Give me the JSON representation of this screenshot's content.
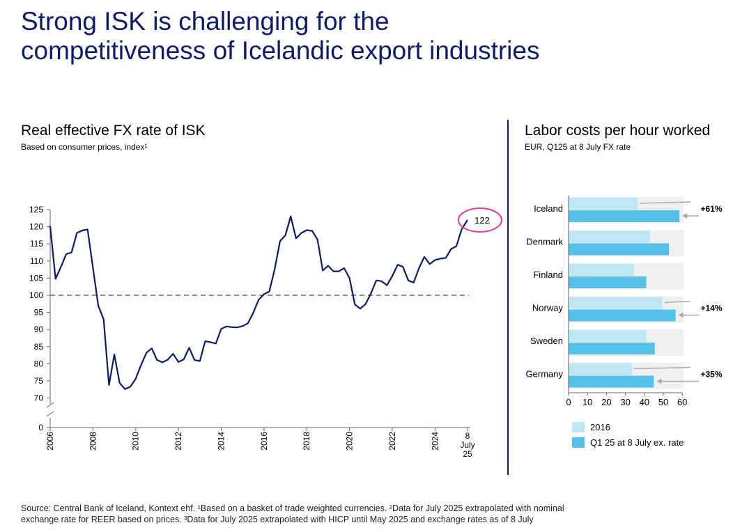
{
  "page": {
    "title_line1": "Strong ISK is challenging for the",
    "title_line2": "competitiveness of Icelandic export industries",
    "source_line1": "Source: Central Bank of Iceland, Kontext ehf. ¹Based on a basket of trade weighted currencies. ²Data for July 2025 extrapolated with nominal",
    "source_line2": "exchange rate for REER based on prices. ³Data for July 2025 extrapolated with HICP until May 2025 and exchange rates as of 8 July"
  },
  "colors": {
    "title": "#0c1b6b",
    "line": "#0c1b6b",
    "highlight_circle": "#e6389a",
    "bar_2016": "#bfe6f5",
    "bar_q125": "#55c1ea"
  },
  "chart_data": [
    {
      "type": "line",
      "title": "Real effective FX rate of ISK",
      "subtitle": "Based on consumer prices, index¹",
      "y_ticks": [
        "125",
        "120",
        "115",
        "110",
        "105",
        "100",
        "95",
        "90",
        "85",
        "80",
        "75",
        "70",
        "0"
      ],
      "x_ticks": [
        "2006",
        "2008",
        "2010",
        "2012",
        "2014",
        "2016",
        "2018",
        "2020",
        "2022",
        "2024"
      ],
      "x_last_label": [
        "8",
        "July",
        "25"
      ],
      "ylim": [
        0,
        125
      ],
      "axis_break": true,
      "reference_line": 100,
      "end_label": "122",
      "x": [
        2006.0,
        2006.25,
        2006.5,
        2006.75,
        2007.0,
        2007.25,
        2007.5,
        2007.75,
        2008.0,
        2008.25,
        2008.5,
        2008.75,
        2009.0,
        2009.25,
        2009.5,
        2009.75,
        2010.0,
        2010.25,
        2010.5,
        2010.75,
        2011.0,
        2011.25,
        2011.5,
        2011.75,
        2012.0,
        2012.25,
        2012.5,
        2012.75,
        2013.0,
        2013.25,
        2013.5,
        2013.75,
        2014.0,
        2014.25,
        2014.5,
        2014.75,
        2015.0,
        2015.25,
        2015.5,
        2015.75,
        2016.0,
        2016.25,
        2016.5,
        2016.75,
        2017.0,
        2017.25,
        2017.5,
        2017.75,
        2018.0,
        2018.25,
        2018.5,
        2018.75,
        2019.0,
        2019.25,
        2019.5,
        2019.75,
        2020.0,
        2020.25,
        2020.5,
        2020.75,
        2021.0,
        2021.25,
        2021.5,
        2021.75,
        2022.0,
        2022.25,
        2022.5,
        2022.75,
        2023.0,
        2023.25,
        2023.5,
        2023.75,
        2024.0,
        2024.25,
        2024.5,
        2024.75,
        2025.0,
        2025.25,
        2025.52
      ],
      "y": [
        120.2,
        104.8,
        108.2,
        112.0,
        112.5,
        118.2,
        118.9,
        119.2,
        108.0,
        97.0,
        93.0,
        73.8,
        82.7,
        74.4,
        72.6,
        73.3,
        75.6,
        79.6,
        83.2,
        84.5,
        81.1,
        80.4,
        81.2,
        82.9,
        80.5,
        81.3,
        84.7,
        81.1,
        80.8,
        86.6,
        86.3,
        85.9,
        90.2,
        90.9,
        90.7,
        90.6,
        91.0,
        91.8,
        94.9,
        98.7,
        100.3,
        101.1,
        107.6,
        115.8,
        117.5,
        123.0,
        116.6,
        118.2,
        119.0,
        118.8,
        116.3,
        107.2,
        108.6,
        107.0,
        107.0,
        107.9,
        105.0,
        97.3,
        96.1,
        97.4,
        100.5,
        104.3,
        104.1,
        102.9,
        105.6,
        108.9,
        108.3,
        104.3,
        103.7,
        107.9,
        111.2,
        109.1,
        110.3,
        110.7,
        110.9,
        113.5,
        114.3,
        119.3,
        122.0
      ]
    },
    {
      "type": "bar",
      "title": "Labor costs per hour worked",
      "subtitle": "EUR, Q125 at 8 July FX rate",
      "categories": [
        "Iceland",
        "Denmark",
        "Finland",
        "Norway",
        "Sweden",
        "Germany"
      ],
      "series": [
        {
          "name": "2016",
          "values": [
            36.5,
            43,
            34.5,
            49.5,
            41,
            33.5
          ]
        },
        {
          "name": "Q1 25 at 8 July ex. rate",
          "values": [
            58.5,
            53,
            41,
            56.5,
            45.5,
            45
          ]
        }
      ],
      "x_ticks": [
        "0",
        "10",
        "20",
        "30",
        "40",
        "50",
        "60"
      ],
      "xlim": [
        0,
        60
      ],
      "annotations": [
        {
          "category": "Iceland",
          "text": "+61%"
        },
        {
          "category": "Norway",
          "text": "+14%"
        },
        {
          "category": "Germany",
          "text": "+35%"
        }
      ]
    }
  ]
}
